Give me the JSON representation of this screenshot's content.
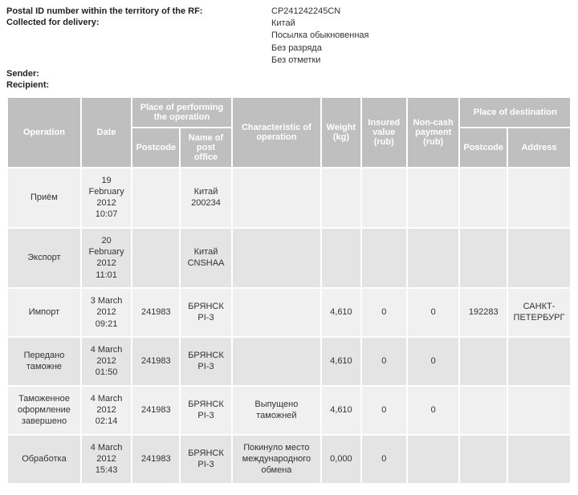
{
  "header": {
    "postal_id_label": "Postal ID number within the territory of the RF:",
    "postal_id_value": "CP241242245CN",
    "collected_label": "Collected for delivery:",
    "collected_lines": [
      "Китай",
      "Посылка обыкновенная",
      "Без разряда",
      "Без отметки"
    ],
    "sender_label": "Sender:",
    "recipient_label": "Recipient:"
  },
  "table": {
    "columns": {
      "operation": "Operation",
      "date": "Date",
      "place_perf": "Place of performing the operation",
      "postcode": "Postcode",
      "name_po": "Name of post office",
      "characteristic": "Characteristic of operation",
      "weight": "Weight (kg)",
      "insured": "Insured value (rub)",
      "noncash": "Non-cash payment (rub)",
      "place_dest": "Place of destination",
      "dest_postcode": "Postcode",
      "address": "Address"
    },
    "rows": [
      {
        "op": "Приём",
        "date": "19 February 2012 10:07",
        "pcode": "",
        "po": "Китай 200234",
        "char": "",
        "w": "",
        "ins": "",
        "nc": "",
        "dp": "",
        "addr": ""
      },
      {
        "op": "Экспорт",
        "date": "20 February 2012 11:01",
        "pcode": "",
        "po": "Китай CNSHAA",
        "char": "",
        "w": "",
        "ins": "",
        "nc": "",
        "dp": "",
        "addr": ""
      },
      {
        "op": "Импорт",
        "date": "3 March 2012 09:21",
        "pcode": "241983",
        "po": "БРЯНСК PI-3",
        "char": "",
        "w": "4,610",
        "ins": "0",
        "nc": "0",
        "dp": "192283",
        "addr": "САНКТ-ПЕТЕРБУРГ"
      },
      {
        "op": "Передано таможне",
        "date": "4 March 2012 01:50",
        "pcode": "241983",
        "po": "БРЯНСК PI-3",
        "char": "",
        "w": "4,610",
        "ins": "0",
        "nc": "0",
        "dp": "",
        "addr": ""
      },
      {
        "op": "Таможенное оформление завершено",
        "date": "4 March 2012 02:14",
        "pcode": "241983",
        "po": "БРЯНСК PI-3",
        "char": "Выпущено таможней",
        "w": "4,610",
        "ins": "0",
        "nc": "0",
        "dp": "",
        "addr": ""
      },
      {
        "op": "Обработка",
        "date": "4 March 2012 15:43",
        "pcode": "241983",
        "po": "БРЯНСК PI-3",
        "char": "Покинуло место международного обмена",
        "w": "0,000",
        "ins": "0",
        "nc": "",
        "dp": "",
        "addr": ""
      }
    ]
  }
}
